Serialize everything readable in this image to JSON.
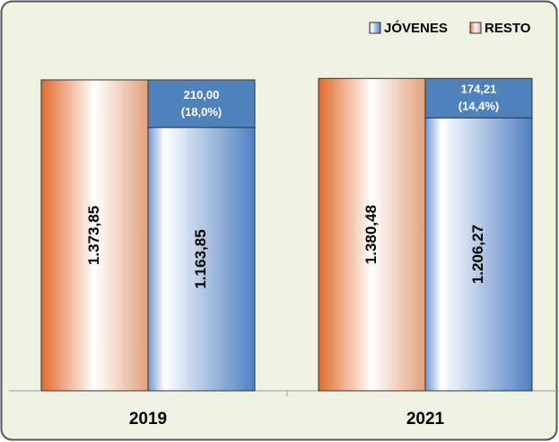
{
  "chart_data": {
    "type": "bar",
    "categories": [
      "2019",
      "2021"
    ],
    "series": [
      {
        "name": "RESTO",
        "color": "#e06a2c",
        "values": [
          1373.85,
          1380.48
        ],
        "value_labels": [
          "1.373,85",
          "1.380,48"
        ]
      },
      {
        "name": "JÓVENES",
        "color": "#4f81bd",
        "values": [
          1163.85,
          1206.27
        ],
        "value_labels": [
          "1.163,85",
          "1.206,27"
        ]
      }
    ],
    "gap": {
      "color": "#4f81bd",
      "values": [
        210.0,
        174.21
      ],
      "value_labels": [
        "210,00",
        "174,21"
      ],
      "percent_labels": [
        "(18,0%)",
        "(14,4%)"
      ]
    },
    "ylim": [
      0,
      1600
    ],
    "legend": "top-right"
  }
}
